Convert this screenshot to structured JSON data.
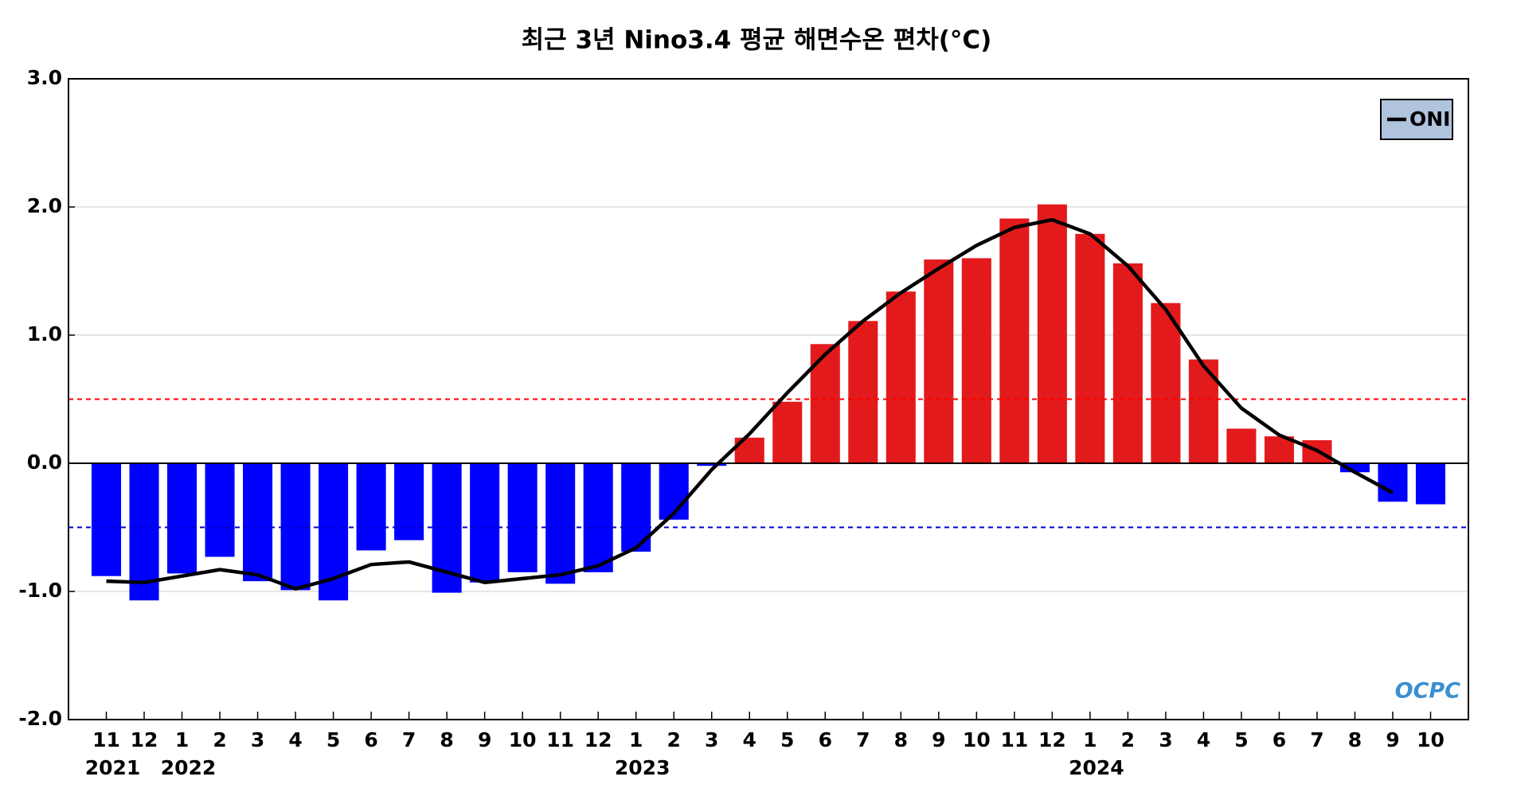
{
  "chart_data": {
    "type": "bar",
    "title": "최근 3년 Nino3.4 평균 해면수온 편차(°C)",
    "categories": [
      "11",
      "12",
      "1",
      "2",
      "3",
      "4",
      "5",
      "6",
      "7",
      "8",
      "9",
      "10",
      "11",
      "12",
      "1",
      "2",
      "3",
      "4",
      "5",
      "6",
      "7",
      "8",
      "9",
      "10",
      "11",
      "12",
      "1",
      "2",
      "3",
      "4",
      "5",
      "6",
      "7",
      "8",
      "9",
      "10"
    ],
    "year_labels": [
      "2021",
      null,
      "2022",
      null,
      null,
      null,
      null,
      null,
      null,
      null,
      null,
      null,
      null,
      null,
      "2023",
      null,
      null,
      null,
      null,
      null,
      null,
      null,
      null,
      null,
      null,
      null,
      "2024",
      null,
      null,
      null,
      null,
      null,
      null,
      null,
      null,
      null
    ],
    "values": [
      -0.88,
      -1.07,
      -0.86,
      -0.73,
      -0.92,
      -0.99,
      -1.07,
      -0.68,
      -0.6,
      -1.01,
      -0.93,
      -0.85,
      -0.94,
      -0.85,
      -0.69,
      -0.44,
      -0.02,
      0.2,
      0.48,
      0.93,
      1.11,
      1.34,
      1.59,
      1.6,
      1.91,
      2.02,
      1.79,
      1.56,
      1.25,
      0.81,
      0.27,
      0.21,
      0.18,
      -0.07,
      -0.3,
      -0.32
    ],
    "positive_color": "#e31a1c",
    "negative_color": "#0000ff",
    "series": [
      {
        "name": "ONI",
        "color": "#000000",
        "values": [
          -0.92,
          -0.93,
          -0.88,
          -0.83,
          -0.87,
          -0.98,
          -0.9,
          -0.79,
          -0.77,
          -0.85,
          -0.93,
          -0.9,
          -0.87,
          -0.8,
          -0.66,
          -0.39,
          -0.05,
          0.23,
          0.55,
          0.85,
          1.11,
          1.33,
          1.52,
          1.7,
          1.84,
          1.9,
          1.79,
          1.54,
          1.2,
          0.76,
          0.43,
          0.22,
          0.1,
          -0.07,
          -0.23,
          null
        ]
      }
    ],
    "reference_lines": [
      {
        "value": 0.5,
        "color": "#ff0000"
      },
      {
        "value": -0.5,
        "color": "#0000cc"
      }
    ],
    "ylim": [
      -2,
      3
    ],
    "yticks": [
      {
        "value": -2,
        "label": "-2.0"
      },
      {
        "value": -1,
        "label": "-1.0"
      },
      {
        "value": 0,
        "label": "0.0"
      },
      {
        "value": 1,
        "label": "1.0"
      },
      {
        "value": 2,
        "label": "2.0"
      },
      {
        "value": 3,
        "label": "3.0"
      }
    ],
    "grid": true,
    "legend": "upper right",
    "watermark": "OCPC"
  }
}
